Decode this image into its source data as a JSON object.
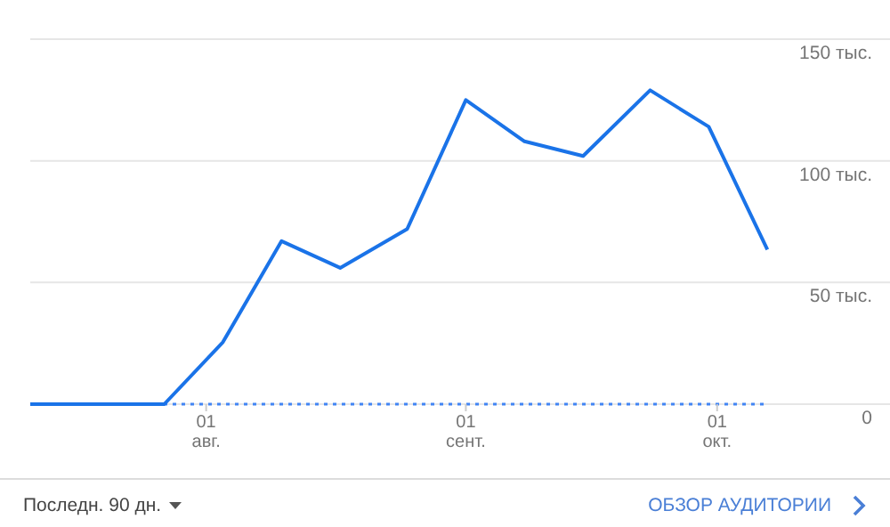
{
  "chart_data": {
    "type": "line",
    "x": [
      "--07-11",
      "--07-20",
      "--07-27",
      "--08-03",
      "--08-10",
      "--08-17",
      "--08-25",
      "--09-01",
      "--09-08",
      "--09-15",
      "--09-23",
      "--09-30",
      "--10-07"
    ],
    "series": [
      {
        "color": "#1a73e8",
        "values": [
          0,
          0,
          0,
          25.5,
          67,
          56,
          72,
          125,
          108,
          102,
          129,
          114,
          63.5
        ]
      }
    ],
    "xlim": [
      "--07-11",
      "--10-21"
    ],
    "xticks": [
      {
        "value": "--08-01",
        "label": "01 авг."
      },
      {
        "value": "--09-01",
        "label": "01 сент."
      },
      {
        "value": "--10-01",
        "label": "01 окт."
      }
    ],
    "ylim": [
      0,
      150
    ],
    "yticks": [
      {
        "value": 0,
        "label": "0"
      },
      {
        "value": 50,
        "label": "50 тыс."
      },
      {
        "value": 100,
        "label": "100 тыс."
      },
      {
        "value": 150,
        "label": "150 тыс."
      }
    ],
    "grid": "y",
    "marker": "none",
    "line_style": "solid",
    "ref_lines": [
      {
        "axis": "y",
        "value": 0,
        "color": "#4285f4",
        "line_style": "dotted"
      }
    ],
    "annotations": [
      "Последн. 90 дн.",
      "ОБЗОР АУДИТОРИИ"
    ]
  }
}
